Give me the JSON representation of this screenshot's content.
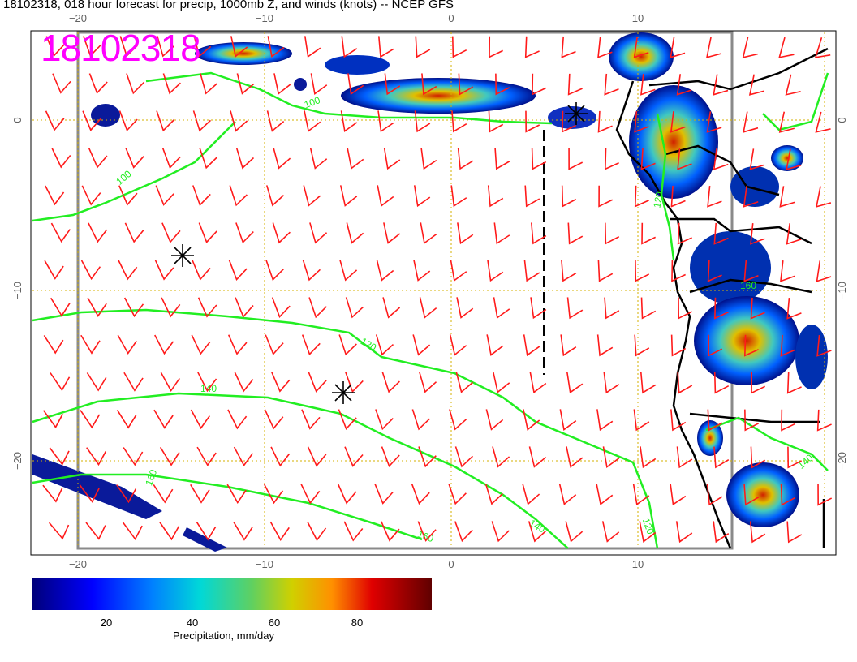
{
  "title": "18102318, 018 hour forecast for precip, 1000mb Z, and winds (knots) -- NCEP GFS",
  "stamp": "18102318",
  "axes": {
    "lon_ticks": [
      "−20",
      "−10",
      "0",
      "10"
    ],
    "lat_ticks": [
      "0",
      "−10",
      "−20"
    ]
  },
  "contours": {
    "labels": [
      "100",
      "100",
      "120",
      "140",
      "140",
      "160",
      "160",
      "120",
      "120",
      "140",
      "160"
    ]
  },
  "colorbar": {
    "ticks": [
      "20",
      "40",
      "60",
      "80"
    ],
    "title": "Precipitation, mm/day"
  },
  "colors": {
    "wind": "#ff1a1a",
    "contour": "#22ee22",
    "grid": "#d4b000",
    "stamp": "#ff00ff",
    "coast": "#000000"
  }
}
